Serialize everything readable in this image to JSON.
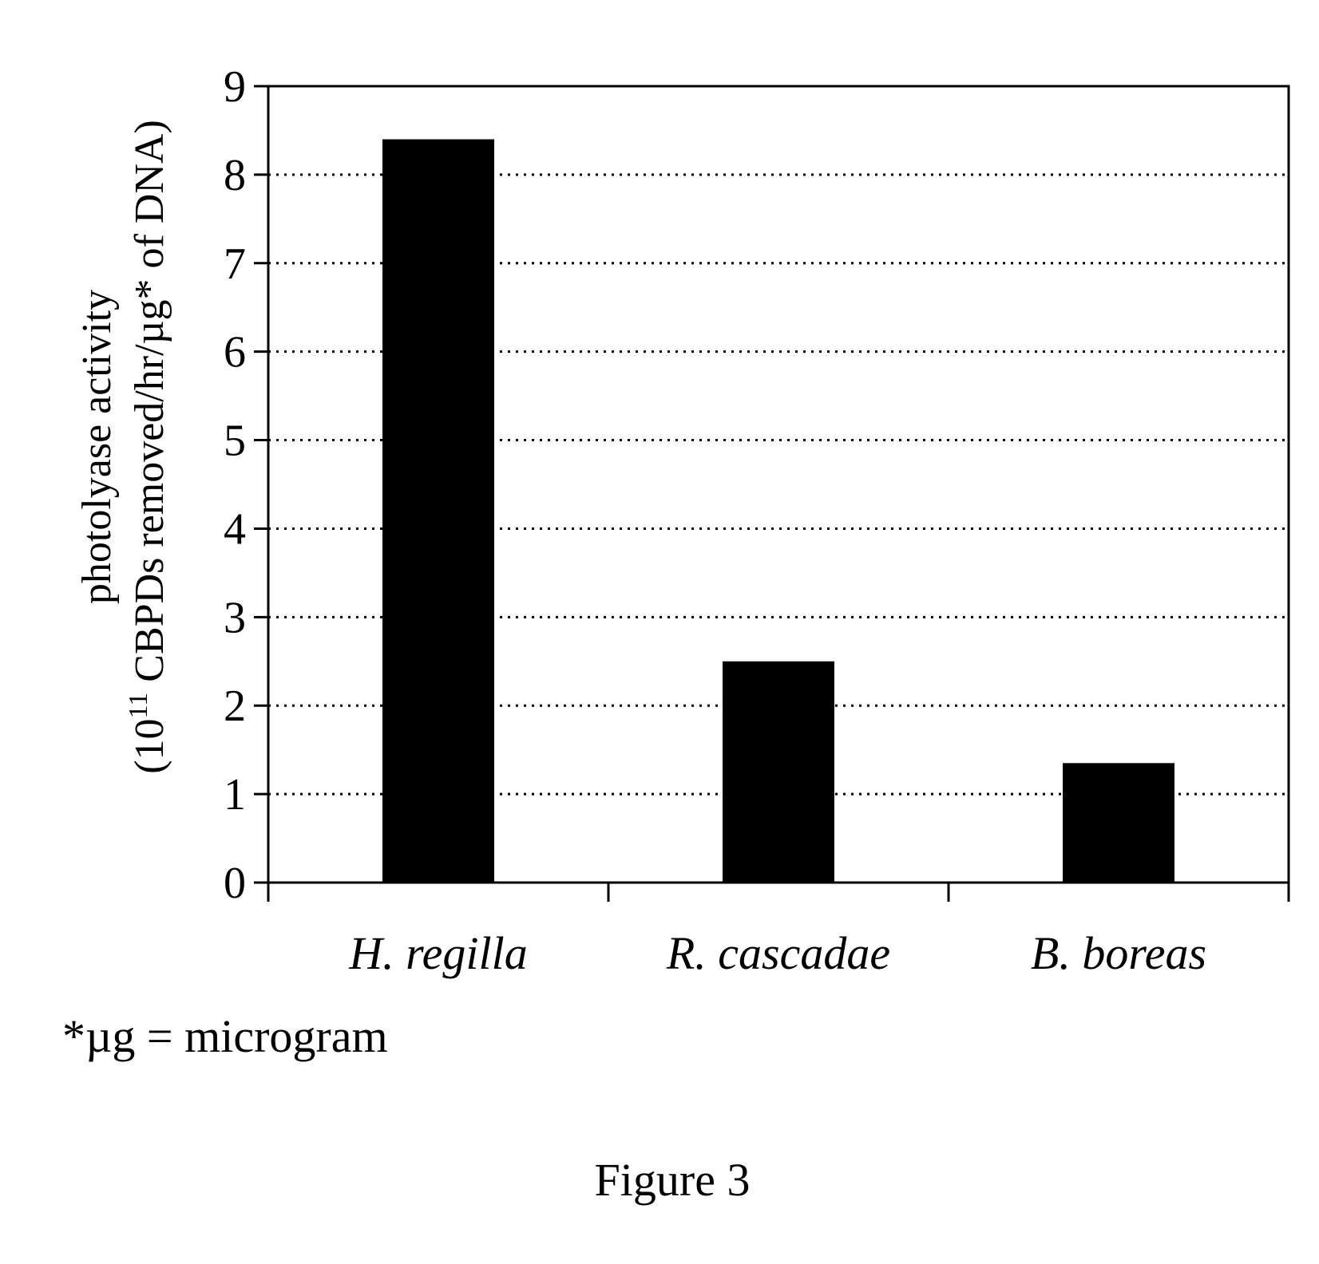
{
  "chart_data": {
    "type": "bar",
    "categories": [
      "H. regilla",
      "R. cascadae",
      "B. boreas"
    ],
    "values": [
      8.4,
      2.5,
      1.35
    ],
    "ylabel_line1": "photolyase activity",
    "ylabel_line2_prefix": "(10",
    "ylabel_line2_sup": "11",
    "ylabel_line2_suffix": " CBPDs removed/hr/µg* of DNA)",
    "ylim": [
      0,
      9
    ],
    "yticks": [
      "0",
      "1",
      "2",
      "3",
      "4",
      "5",
      "6",
      "7",
      "8",
      "9"
    ],
    "grid": true,
    "bar_color": "#000000",
    "gridline_color": "#000000"
  },
  "footnote": "*µg = microgram",
  "caption": "Figure 3"
}
